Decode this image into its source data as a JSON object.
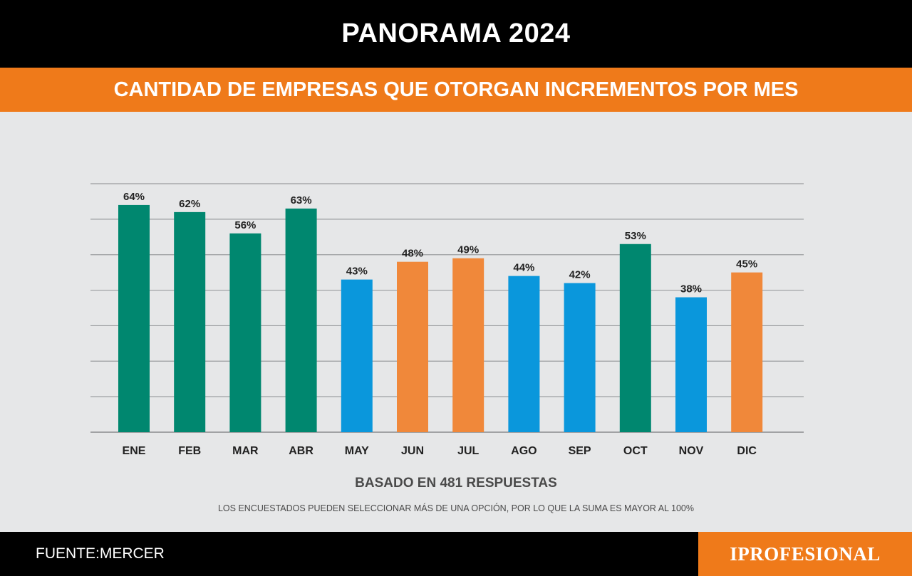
{
  "header": {
    "title": "PANORAMA 2024",
    "subtitle": "CANTIDAD DE EMPRESAS QUE OTORGAN INCREMENTOS POR MES"
  },
  "notes": {
    "basado": "BASADO EN 481 RESPUESTAS",
    "disclaimer": "LOS ENCUESTADOS PUEDEN SELECCIONAR MÁS DE UNA OPCIÓN, POR LO QUE LA SUMA ES MAYOR AL 100%"
  },
  "footer": {
    "source": "FUENTE:MERCER",
    "brand": "IPROFESIONAL"
  },
  "colors": {
    "teal": "#00876f",
    "blue": "#0a97dc",
    "orange": "#f0883a",
    "accent": "#ef7a1a"
  },
  "chart_data": {
    "type": "bar",
    "categories": [
      "ENE",
      "FEB",
      "MAR",
      "ABR",
      "MAY",
      "JUN",
      "JUL",
      "AGO",
      "SEP",
      "OCT",
      "NOV",
      "DIC"
    ],
    "values": [
      64,
      62,
      56,
      63,
      43,
      48,
      49,
      44,
      42,
      53,
      38,
      45
    ],
    "data_labels": [
      "64%",
      "62%",
      "56%",
      "63%",
      "43%",
      "48%",
      "49%",
      "44%",
      "42%",
      "53%",
      "38%",
      "45%"
    ],
    "bar_colors": [
      "teal",
      "teal",
      "teal",
      "teal",
      "blue",
      "orange",
      "orange",
      "blue",
      "blue",
      "teal",
      "blue",
      "orange"
    ],
    "ylim": [
      0,
      70
    ],
    "gridlines": [
      0,
      10,
      20,
      30,
      40,
      50,
      60,
      70
    ],
    "grid": true,
    "title": "",
    "xlabel": "",
    "ylabel": ""
  }
}
